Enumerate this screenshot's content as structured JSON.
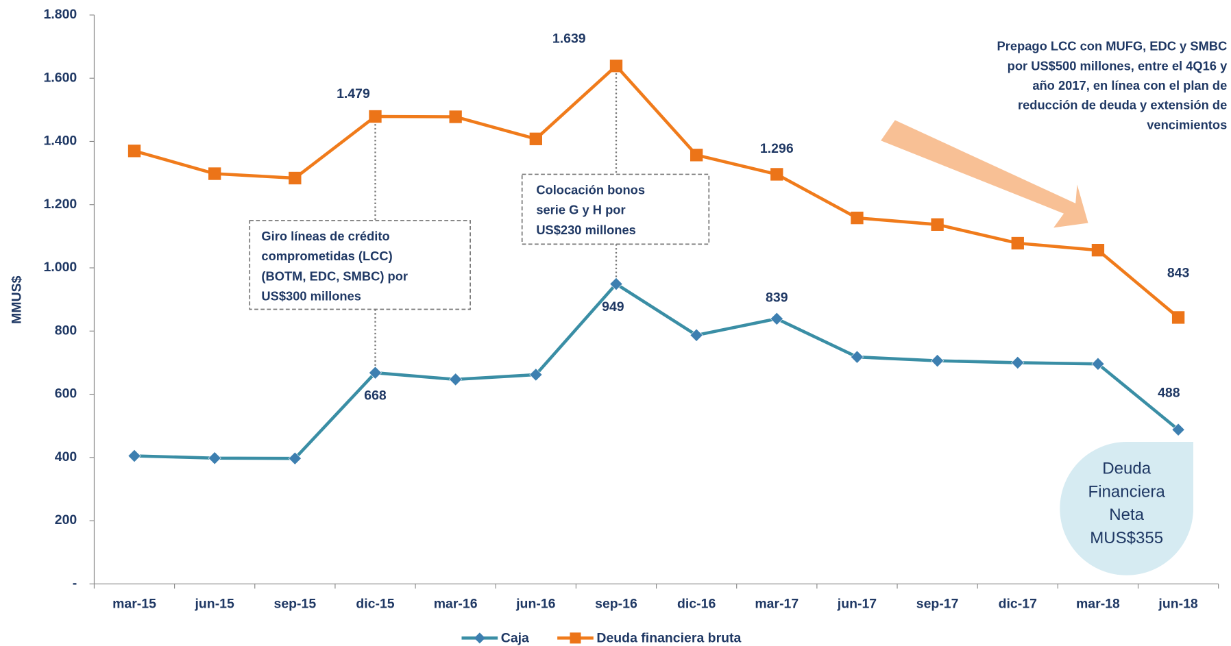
{
  "chart_data": {
    "type": "line",
    "y_label": "MMUS$",
    "categories": [
      "mar-15",
      "jun-15",
      "sep-15",
      "dic-15",
      "mar-16",
      "jun-16",
      "sep-16",
      "dic-16",
      "mar-17",
      "jun-17",
      "sep-17",
      "dic-17",
      "mar-18",
      "jun-18"
    ],
    "series": [
      {
        "name": "Caja",
        "color": "#3a8ea5",
        "marker_color": "#3d7fb0",
        "marker": "diamond",
        "values": [
          405,
          398,
          397,
          668,
          647,
          662,
          949,
          787,
          839,
          718,
          706,
          700,
          696,
          488
        ],
        "value_labels": [
          null,
          null,
          null,
          "668",
          null,
          null,
          "949",
          null,
          "839",
          null,
          null,
          null,
          null,
          "488"
        ]
      },
      {
        "name": "Deuda financiera bruta",
        "color": "#f07b1b",
        "marker_color": "#ec7418",
        "marker": "square",
        "values": [
          1370,
          1298,
          1284,
          1479,
          1478,
          1408,
          1639,
          1357,
          1296,
          1158,
          1137,
          1078,
          1056,
          843
        ],
        "value_labels": [
          null,
          null,
          null,
          "1.479",
          null,
          null,
          "1.639",
          null,
          "1.296",
          null,
          null,
          null,
          null,
          "843"
        ]
      }
    ],
    "ylim": [
      0,
      1800
    ],
    "yticks": [
      {
        "value": 0,
        "label": "-"
      },
      200,
      400,
      600,
      800,
      {
        "value": 1000,
        "label": "1.000"
      },
      {
        "value": 1200,
        "label": "1.200"
      },
      {
        "value": 1400,
        "label": "1.400"
      },
      {
        "value": 1600,
        "label": "1.600"
      },
      {
        "value": 1800,
        "label": "1.800"
      }
    ],
    "annotations": [
      {
        "lines": [
          "Giro líneas de crédito",
          "comprometidas (LCC)",
          "(BOTM, EDC, SMBC) por",
          "US$300 millones"
        ]
      },
      {
        "lines": [
          "Colocación bonos",
          "serie G y H por",
          "US$230 millones"
        ]
      },
      {
        "lines": [
          "Prepago LCC con MUFG, EDC y SMBC",
          "por US$500 millones, entre el 4Q16 y",
          "año 2017, en línea con el plan de",
          "reducción de deuda y extensión de",
          "vencimientos"
        ]
      },
      {
        "lines": [
          "Deuda",
          "Financiera",
          "Neta",
          "MUS$355"
        ]
      }
    ],
    "legend": "bottom"
  }
}
